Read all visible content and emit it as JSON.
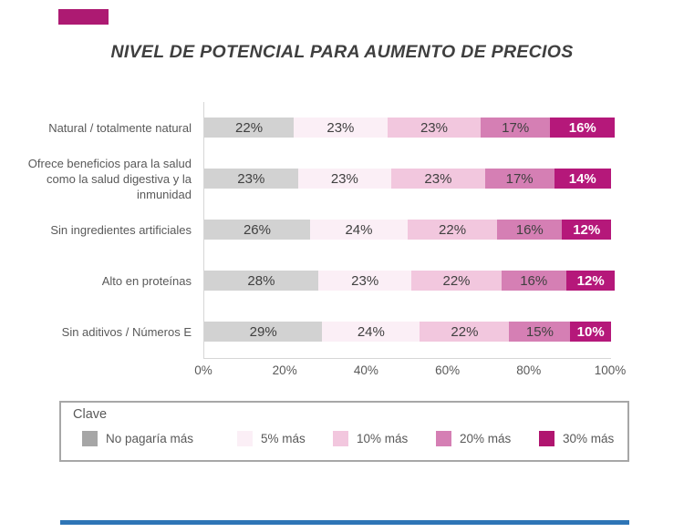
{
  "title": "NIVEL DE POTENCIAL PARA AUMENTO DE PRECIOS",
  "accent_color": "#ad1a72",
  "bottom_rule_color": "#2e75b6",
  "text_colors": {
    "title": "#3f3f3f",
    "labels": "#595959",
    "bar_values": "#404040",
    "bar_value_on_dark": "#ffffff"
  },
  "legend": {
    "title": "Clave",
    "items": [
      {
        "label": "No pagaría más",
        "color": "#a6a6a6"
      },
      {
        "label": "5% más",
        "color": "#fbeff6"
      },
      {
        "label": "10% más",
        "color": "#f2c7de"
      },
      {
        "label": "20% más",
        "color": "#d57fb4"
      },
      {
        "label": "30% más",
        "color": "#b0156f"
      }
    ]
  },
  "chart_data": {
    "type": "bar",
    "orientation": "horizontal",
    "stacked": true,
    "title": "NIVEL DE POTENCIAL PARA AUMENTO DE PRECIOS",
    "categories": [
      "Natural / totalmente natural",
      "Ofrece beneficios para la salud como la salud digestiva y la inmunidad",
      "Sin ingredientes artificiales",
      "Alto en proteínas",
      "Sin aditivos / Números E"
    ],
    "series": [
      {
        "name": "No pagaría más",
        "color": "#d2d2d2",
        "values": [
          22,
          23,
          26,
          28,
          29
        ]
      },
      {
        "name": "5% más",
        "color": "#fbeff6",
        "values": [
          23,
          23,
          24,
          23,
          24
        ]
      },
      {
        "name": "10% más",
        "color": "#f2c7de",
        "values": [
          23,
          23,
          22,
          22,
          22
        ]
      },
      {
        "name": "20% más",
        "color": "#d57fb4",
        "values": [
          17,
          17,
          16,
          16,
          15
        ]
      },
      {
        "name": "30% más",
        "color": "#b5187a",
        "values": [
          16,
          14,
          12,
          12,
          10
        ]
      }
    ],
    "value_suffix": "%",
    "xlim": [
      0,
      100
    ],
    "x_ticks": [
      "0%",
      "20%",
      "40%",
      "60%",
      "80%",
      "100%"
    ],
    "grid": false,
    "legend_position": "boxed-bottom"
  }
}
